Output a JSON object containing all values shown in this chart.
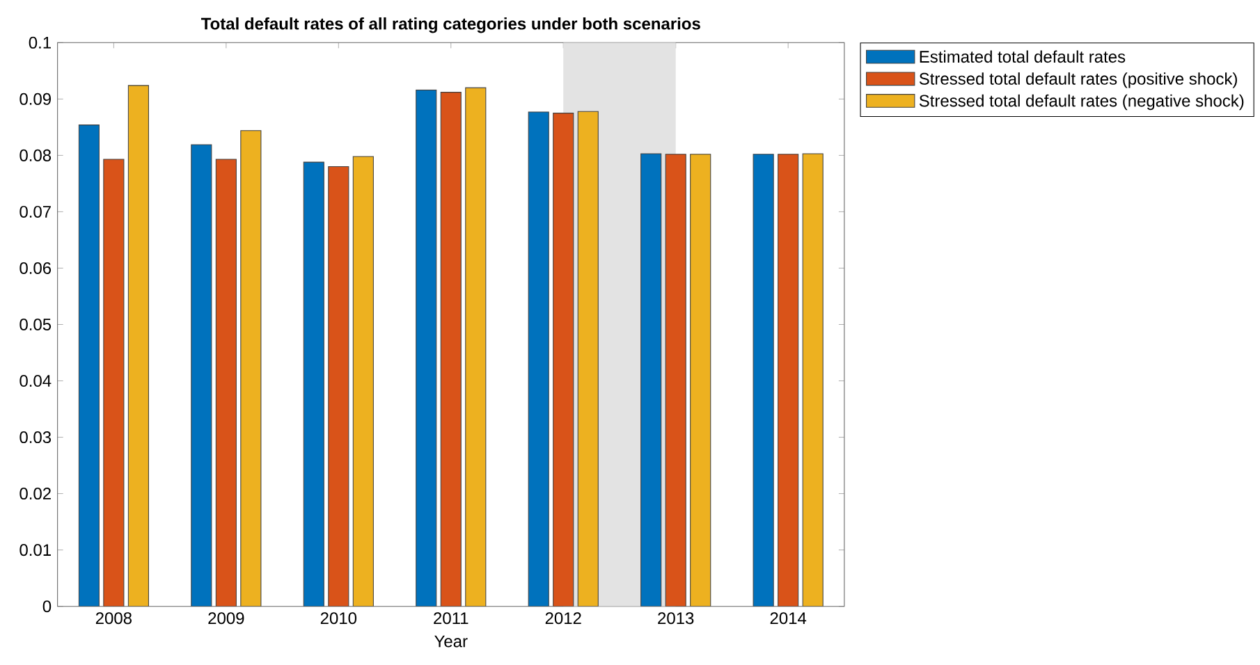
{
  "chart_data": {
    "type": "bar",
    "title": "Total default rates of all rating categories under both scenarios",
    "xlabel": "Year",
    "x": [
      2008,
      2009,
      2010,
      2011,
      2012,
      2013,
      2014
    ],
    "xlim": [
      2007.5,
      2014.5
    ],
    "xticks": [
      2008,
      2009,
      2010,
      2011,
      2012,
      2013,
      2014
    ],
    "ylim": [
      0,
      0.1
    ],
    "yticks": [
      0,
      0.01,
      0.02,
      0.03,
      0.04,
      0.05,
      0.06,
      0.07,
      0.08,
      0.09,
      0.1
    ],
    "series": [
      {
        "name": "Estimated total default rates",
        "color": "#0072bd",
        "values": [
          0.0854,
          0.0819,
          0.0788,
          0.0916,
          0.0877,
          0.0803,
          0.0802
        ]
      },
      {
        "name": "Stressed total default rates (positive shock)",
        "color": "#d95319",
        "values": [
          0.0793,
          0.0793,
          0.078,
          0.0912,
          0.0875,
          0.0802,
          0.0802
        ]
      },
      {
        "name": "Stressed total default rates (negative shock)",
        "color": "#edb120",
        "values": [
          0.0924,
          0.0844,
          0.0798,
          0.092,
          0.0878,
          0.0802,
          0.0803
        ]
      }
    ],
    "bands": [
      {
        "axis": "x",
        "from": 2012,
        "to": 2013,
        "color": "#e3e3e3"
      }
    ],
    "legend": "top right",
    "grid": false
  }
}
